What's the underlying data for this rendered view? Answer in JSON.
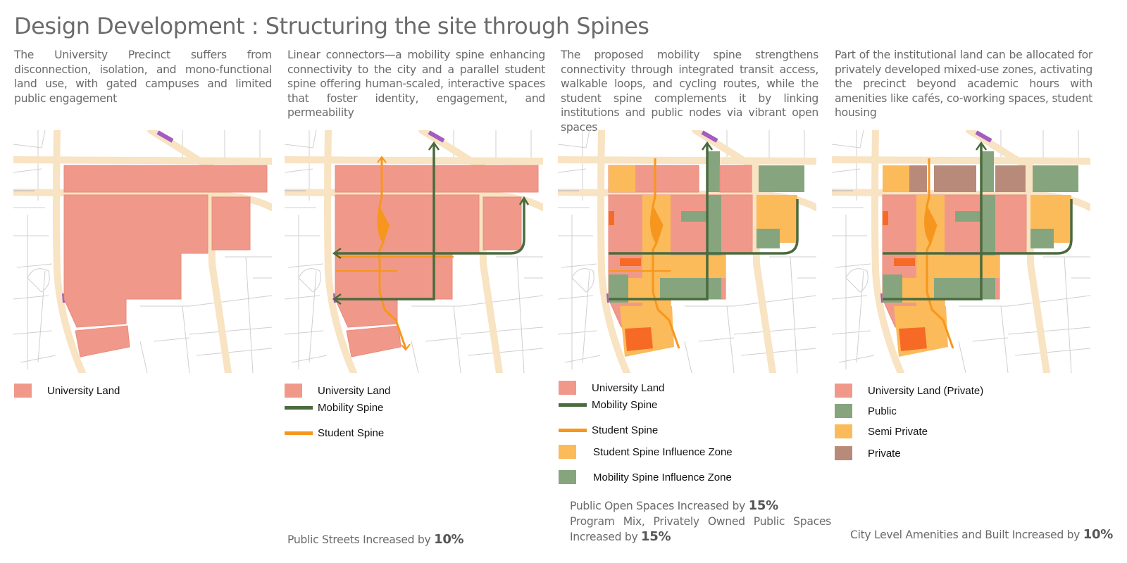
{
  "title": "Design Development : Structuring the site through Spines",
  "colors": {
    "university_land": "#f0998a",
    "university_land_stroke": "#e98a7a",
    "road": "#f8e3c2",
    "street_line": "#c9c9c9",
    "mobility_spine": "#4a6b3e",
    "student_spine": "#f7961e",
    "student_zone": "#fbbb5a",
    "mobility_zone": "#86a57e",
    "private": "#b88a7a",
    "dark_orange": "#f76a26",
    "transit": "#a35cc0"
  },
  "panels": [
    {
      "description": "The University Precinct suffers from disconnection, isolation, and mono-functional land use, with gated campuses and limited public engagement",
      "legend": [
        {
          "type": "swatch",
          "color": "#f0998a",
          "label": "University Land"
        }
      ]
    },
    {
      "description": "Linear connectors—a mobility spine enhancing connectivity to the city and a parallel student spine offering human-scaled, interactive spaces that foster identity, engagement, and permeability",
      "legend": [
        {
          "type": "swatch",
          "color": "#f0998a",
          "label": "University Land"
        },
        {
          "type": "line",
          "color": "#4a6b3e",
          "label": "Mobility Spine"
        },
        {
          "type": "line",
          "color": "#f7961e",
          "label": "Student Spine"
        }
      ],
      "stat": {
        "text": "Public Streets Increased by ",
        "value": "10%"
      }
    },
    {
      "description": "The proposed mobility spine strengthens connectivity through integrated transit access, walkable loops, and cycling routes, while the student spine complements it by linking institutions and public nodes via vibrant open spaces",
      "legend": [
        {
          "type": "swatch",
          "color": "#f0998a",
          "label": "University Land"
        },
        {
          "type": "line",
          "color": "#4a6b3e",
          "label": "Mobility Spine"
        },
        {
          "type": "line",
          "color": "#f7961e",
          "label": "Student Spine"
        },
        {
          "type": "swatch",
          "color": "#fbbb5a",
          "label": "Student Spine Influence Zone"
        },
        {
          "type": "swatch",
          "color": "#86a57e",
          "label": "Mobility Spine Influence Zone"
        }
      ],
      "stat1": {
        "text": "Public Open Spaces Increased by ",
        "value": "15%"
      },
      "stat2": {
        "text": "Program Mix, Privately Owned Public Spaces Increased by ",
        "value": "15%"
      }
    },
    {
      "description": "Part of the institutional land can be allocated for privately developed mixed-use zones, activating the precinct beyond academic hours with amenities like cafés, co-working spaces, student housing",
      "legend": [
        {
          "type": "swatch",
          "color": "#f0998a",
          "label": "University Land (Private)"
        },
        {
          "type": "swatch",
          "color": "#86a57e",
          "label": "Public"
        },
        {
          "type": "swatch",
          "color": "#fbbb5a",
          "label": "Semi Private"
        },
        {
          "type": "swatch",
          "color": "#b88a7a",
          "label": "Private"
        }
      ],
      "stat": {
        "text": "City Level Amenities and Built Increased by ",
        "value": "10%"
      }
    }
  ]
}
